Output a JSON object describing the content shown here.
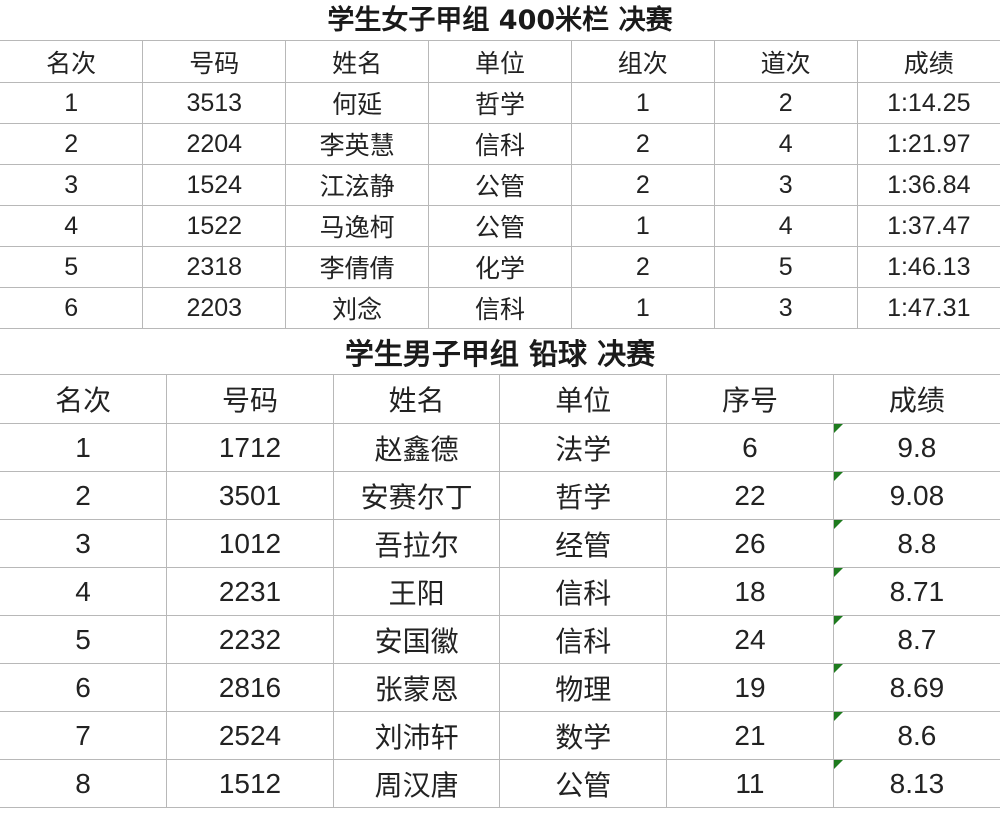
{
  "table1": {
    "title": "学生女子甲组 400米栏 决赛",
    "headers": [
      "名次",
      "号码",
      "姓名",
      "单位",
      "组次",
      "道次",
      "成绩"
    ],
    "rows": [
      [
        "1",
        "3513",
        "何延",
        "哲学",
        "1",
        "2",
        "1:14.25"
      ],
      [
        "2",
        "2204",
        "李英慧",
        "信科",
        "2",
        "4",
        "1:21.97"
      ],
      [
        "3",
        "1524",
        "江泫静",
        "公管",
        "2",
        "3",
        "1:36.84"
      ],
      [
        "4",
        "1522",
        "马逸柯",
        "公管",
        "1",
        "4",
        "1:37.47"
      ],
      [
        "5",
        "2318",
        "李倩倩",
        "化学",
        "2",
        "5",
        "1:46.13"
      ],
      [
        "6",
        "2203",
        "刘念",
        "信科",
        "1",
        "3",
        "1:47.31"
      ]
    ]
  },
  "table2": {
    "title": "学生男子甲组 铅球 决赛",
    "headers": [
      "名次",
      "号码",
      "姓名",
      "单位",
      "序号",
      "成绩"
    ],
    "rows": [
      [
        "1",
        "1712",
        "赵鑫德",
        "法学",
        "6",
        "9.8"
      ],
      [
        "2",
        "3501",
        "安赛尔丁",
        "哲学",
        "22",
        "9.08"
      ],
      [
        "3",
        "1012",
        "吾拉尔",
        "经管",
        "26",
        "8.8"
      ],
      [
        "4",
        "2231",
        "王阳",
        "信科",
        "18",
        "8.71"
      ],
      [
        "5",
        "2232",
        "安国徽",
        "信科",
        "24",
        "8.7"
      ],
      [
        "6",
        "2816",
        "张蒙恩",
        "物理",
        "19",
        "8.69"
      ],
      [
        "7",
        "2524",
        "刘沛轩",
        "数学",
        "21",
        "8.6"
      ],
      [
        "8",
        "1512",
        "周汉唐",
        "公管",
        "11",
        "8.13"
      ]
    ],
    "number_stored_as_text_flag_color": "#1e7b1e"
  }
}
